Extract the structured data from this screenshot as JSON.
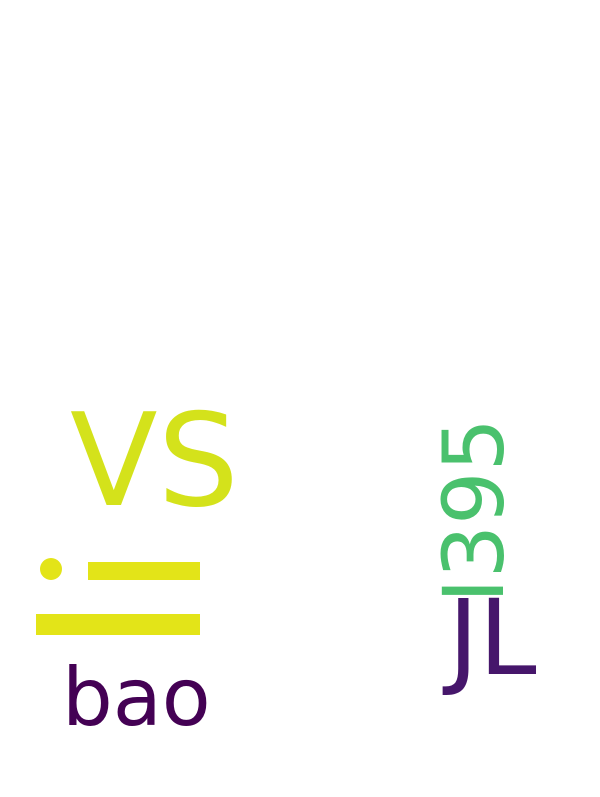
{
  "words": {
    "vs": {
      "text": "VS",
      "color": "#d4e21b"
    },
    "rotated": {
      "text": "I395",
      "color": "#4ac16d"
    },
    "jl": {
      "text": "JL",
      "color": "#46166b"
    },
    "bao": {
      "text": "bao",
      "color": "#440154"
    }
  },
  "glyph_mark": {
    "color": "#e3e418"
  }
}
